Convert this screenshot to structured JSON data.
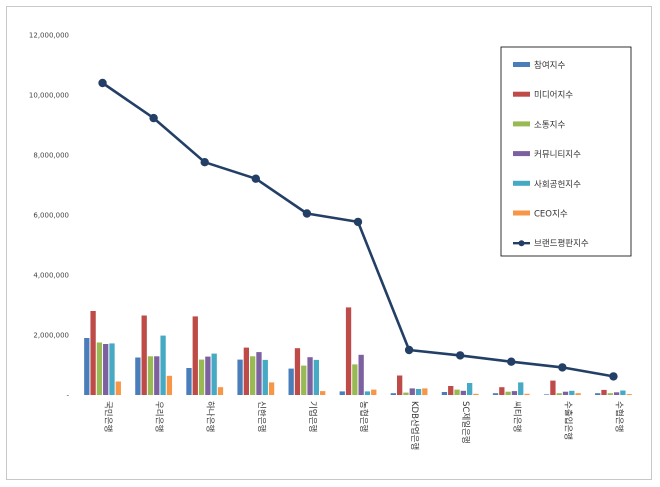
{
  "chart_data": {
    "type": "bar+line",
    "title": "",
    "xlabel": "",
    "ylabel": "",
    "ylim": [
      0,
      12000000
    ],
    "yticks": [
      0,
      2000000,
      4000000,
      6000000,
      8000000,
      10000000,
      12000000
    ],
    "ytick_labels": [
      "-",
      "2,000,000",
      "4,000,000",
      "6,000,000",
      "8,000,000",
      "10,000,000",
      "12,000,000"
    ],
    "categories": [
      "국민은행",
      "우리은행",
      "하나은행",
      "신한은행",
      "기업은행",
      "농협은행",
      "KDB산업은행",
      "SC제일은행",
      "씨티은행",
      "수출입은행",
      "수협은행"
    ],
    "series": [
      {
        "name": "참여지수",
        "kind": "bar",
        "color": "#4a7ebb",
        "values": [
          1900000,
          1250000,
          900000,
          1180000,
          880000,
          120000,
          60000,
          100000,
          60000,
          20000,
          60000
        ]
      },
      {
        "name": "미디어지수",
        "kind": "bar",
        "color": "#be4b48",
        "values": [
          2800000,
          2650000,
          2620000,
          1580000,
          1560000,
          2920000,
          650000,
          300000,
          260000,
          480000,
          170000
        ]
      },
      {
        "name": "소통지수",
        "kind": "bar",
        "color": "#98b954",
        "values": [
          1750000,
          1290000,
          1180000,
          1290000,
          980000,
          1020000,
          80000,
          180000,
          110000,
          60000,
          60000
        ]
      },
      {
        "name": "커뮤니티지수",
        "kind": "bar",
        "color": "#7d60a0",
        "values": [
          1700000,
          1290000,
          1280000,
          1430000,
          1260000,
          1340000,
          220000,
          140000,
          130000,
          110000,
          90000
        ]
      },
      {
        "name": "사회공헌지수",
        "kind": "bar",
        "color": "#46aac5",
        "values": [
          1720000,
          1980000,
          1380000,
          1170000,
          1170000,
          120000,
          200000,
          400000,
          420000,
          140000,
          150000
        ]
      },
      {
        "name": "CEO지수",
        "kind": "bar",
        "color": "#f79646",
        "values": [
          450000,
          640000,
          260000,
          420000,
          130000,
          180000,
          220000,
          40000,
          40000,
          60000,
          30000
        ]
      },
      {
        "name": "브랜드평판지수",
        "kind": "line",
        "color": "#233f66",
        "values": [
          10400000,
          9230000,
          7760000,
          7210000,
          6050000,
          5770000,
          1500000,
          1320000,
          1110000,
          920000,
          620000
        ]
      }
    ],
    "legend_position": "top-right",
    "grid": false
  }
}
